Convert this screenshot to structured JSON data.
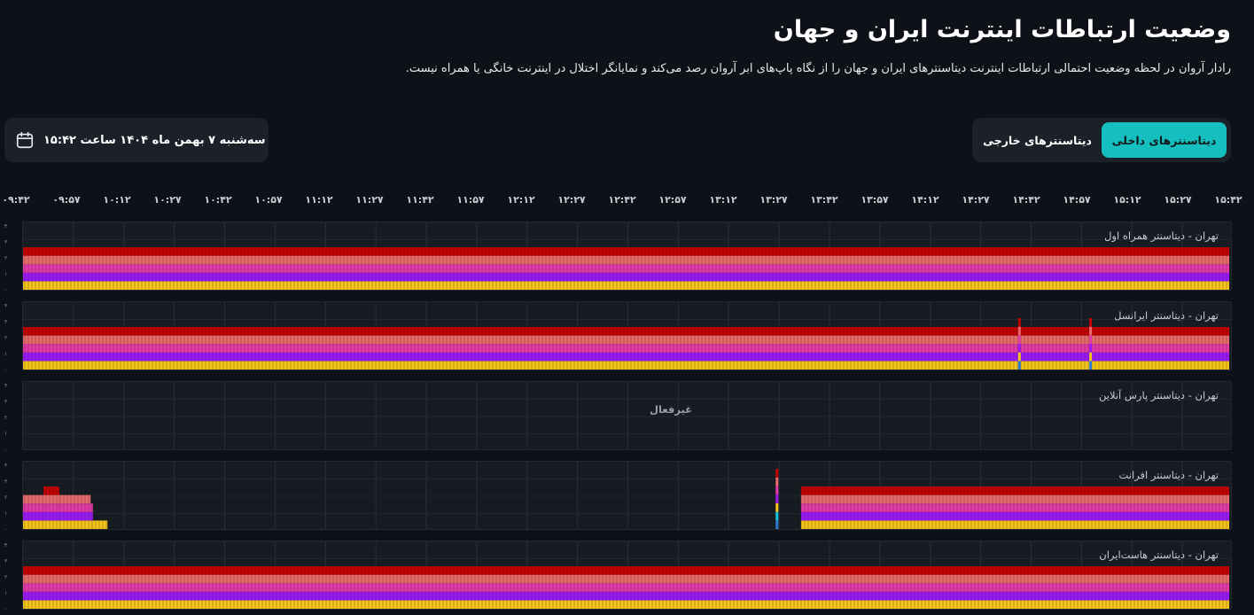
{
  "header": {
    "title": "وضعیت ارتباطات اینترنت ایران و جهان",
    "subtitle": "رادار آروان در لحظه وضعیت احتمالی ارتباطات اینترنت دیتاسنترهای ایران و جهان را از نگاه پاپ‌های ابر آروان رصد می‌کند و نمایانگر اختلال در اینترنت خانگی یا همراه نیست."
  },
  "tabs": [
    {
      "label": "دیتاسنترهای داخلی",
      "active": true
    },
    {
      "label": "دیتاسنترهای خارجی",
      "active": false
    }
  ],
  "date_picker": {
    "text": "سه‌شنبه ۷ بهمن ماه ۱۴۰۴ ساعت ۱۵:۴۲",
    "icon": "calendar-icon"
  },
  "time_axis": [
    "۰۹:۴۲",
    "۰۹:۵۷",
    "۱۰:۱۲",
    "۱۰:۲۷",
    "۱۰:۴۲",
    "۱۰:۵۷",
    "۱۱:۱۲",
    "۱۱:۲۷",
    "۱۱:۴۲",
    "۱۱:۵۷",
    "۱۲:۱۲",
    "۱۲:۲۷",
    "۱۲:۴۲",
    "۱۲:۵۷",
    "۱۳:۱۲",
    "۱۳:۲۷",
    "۱۳:۴۲",
    "۱۳:۵۷",
    "۱۴:۱۲",
    "۱۴:۲۷",
    "۱۴:۴۲",
    "۱۴:۵۷",
    "۱۵:۱۲",
    "۱۵:۲۷",
    "۱۵:۴۲"
  ],
  "y_ticks": [
    "۴",
    "۳",
    "۲",
    "۱",
    "۰"
  ],
  "colors": {
    "accent": "#16bfbf",
    "layer_red": "#c40000",
    "layer_salmon": "#e86a6a",
    "layer_pink": "#e43aa8",
    "layer_purple": "#9b19f5",
    "layer_yellow": "#f5c518",
    "layer_blue": "#2e7ad1",
    "layer_cyan": "#18c4d8"
  },
  "panels": [
    {
      "label": "تهران - دیتاسنتر همراه اول",
      "status": "active",
      "segments": [
        {
          "from": 0,
          "to": 1,
          "level": 5
        }
      ],
      "spikes": []
    },
    {
      "label": "تهران - دیتاسنتر ایرانسل",
      "status": "active",
      "segments": [
        {
          "from": 0,
          "to": 1,
          "level": 5
        }
      ],
      "spikes": [
        {
          "at": 0.825,
          "type": "dip"
        },
        {
          "at": 0.884,
          "type": "dip"
        }
      ]
    },
    {
      "label": "تهران - دیتاسنتر پارس آنلاین",
      "status": "inactive",
      "inactive_text": "غیرفعال",
      "segments": [],
      "spikes": []
    },
    {
      "label": "تهران - دیتاسنتر افرانت",
      "status": "active",
      "segments": [
        {
          "from": 0.0,
          "to": 0.017,
          "level": 4
        },
        {
          "from": 0.017,
          "to": 0.03,
          "level": 5
        },
        {
          "from": 0.03,
          "to": 0.056,
          "level": 4
        },
        {
          "from": 0.056,
          "to": 0.058,
          "level": 3
        },
        {
          "from": 0.058,
          "to": 0.07,
          "level": 1
        },
        {
          "from": 0.645,
          "to": 1.0,
          "level": 5
        }
      ],
      "spikes": [
        {
          "at": 0.624,
          "type": "tall"
        }
      ]
    },
    {
      "label": "تهران - دیتاسنتر هاست‌ایران",
      "status": "active",
      "segments": [
        {
          "from": 0,
          "to": 1,
          "level": 5
        }
      ],
      "spikes": []
    }
  ]
}
